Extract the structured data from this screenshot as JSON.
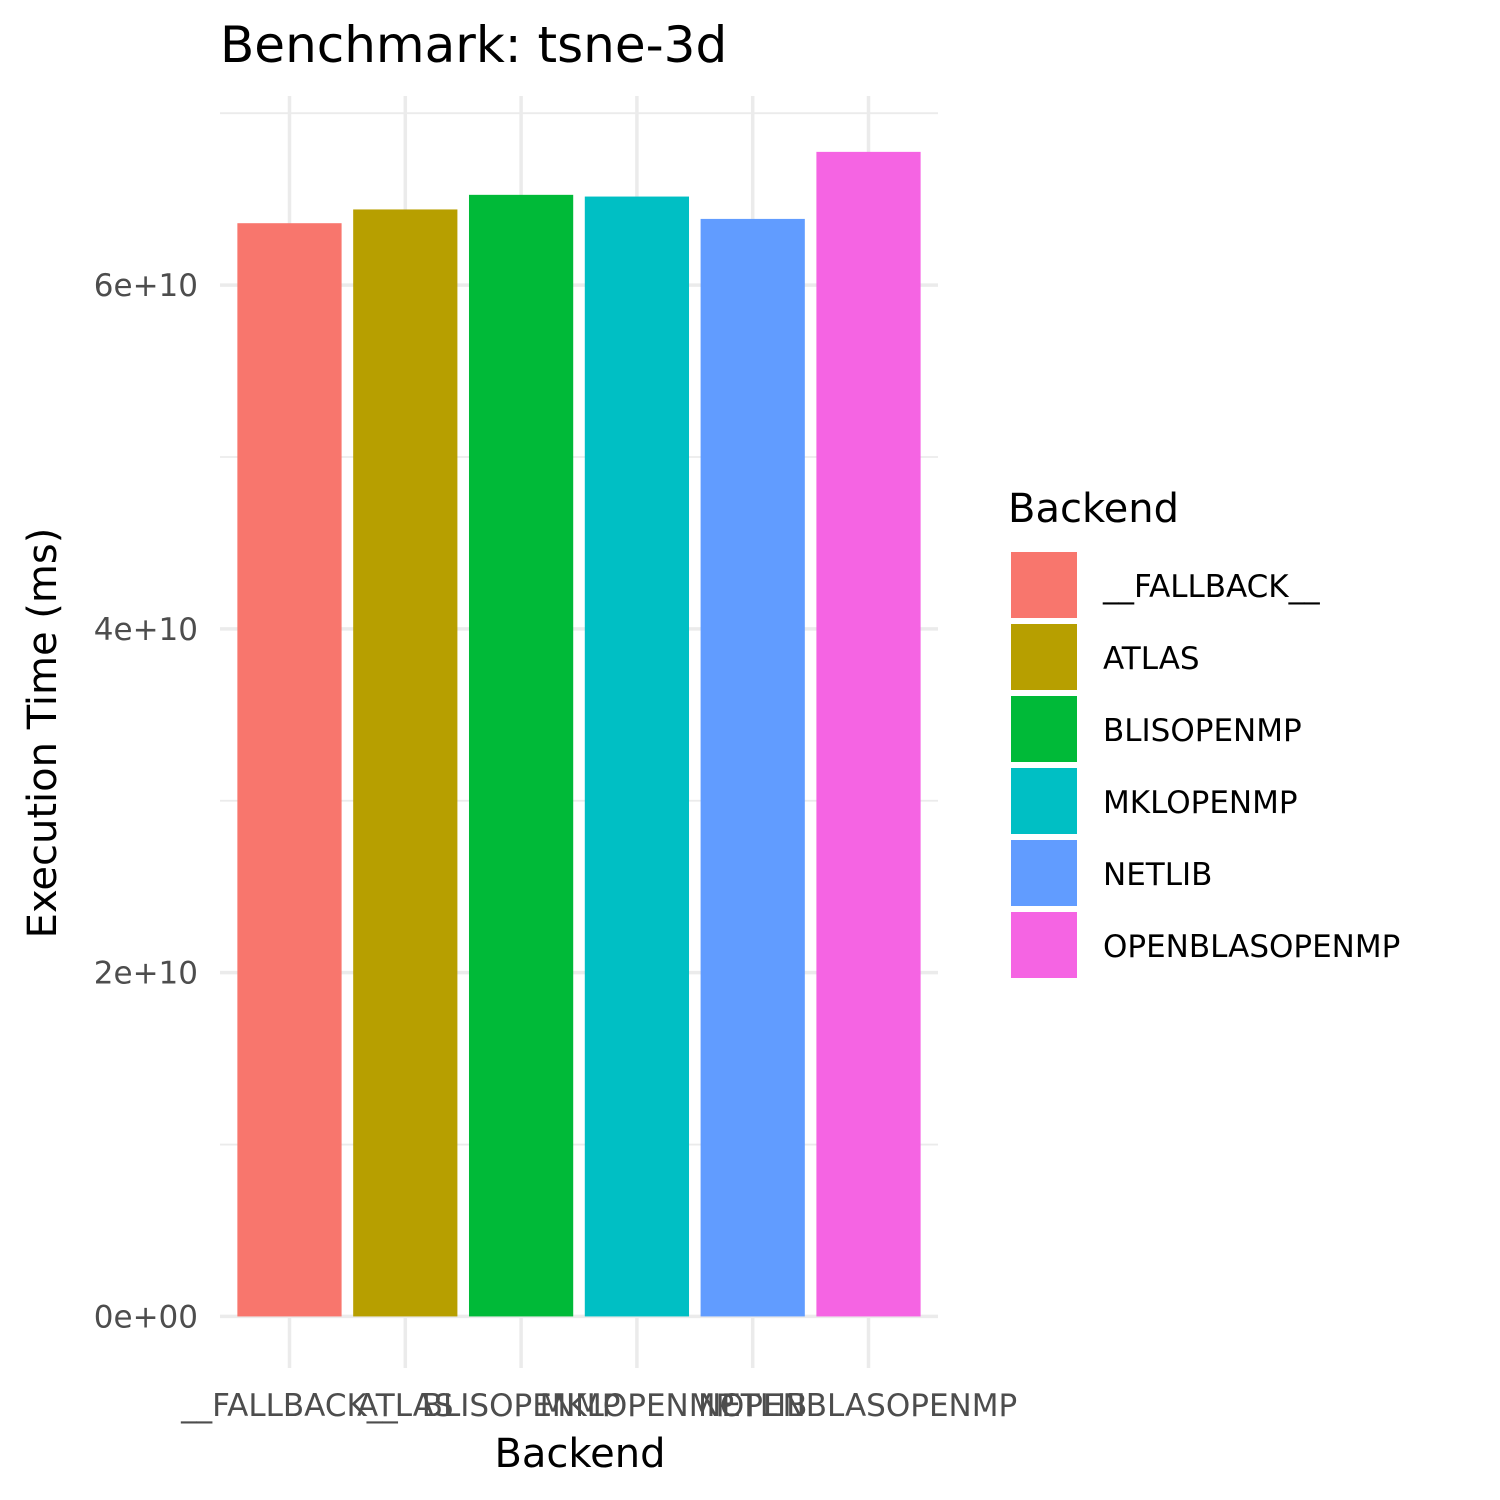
{
  "chart_data": {
    "type": "bar",
    "title": "Benchmark: tsne-3d",
    "xlabel": "Backend",
    "ylabel": "Execution Time (ms)",
    "categories": [
      "__FALLBACK__",
      "ATLAS",
      "BLISOPENMP",
      "MKLOPENMP",
      "NETLIB",
      "OPENBLASOPENMP"
    ],
    "values": [
      63600000000,
      64400000000,
      65250000000,
      65150000000,
      63850000000,
      67750000000
    ],
    "colors": [
      "#F8766D",
      "#B79F00",
      "#00BA38",
      "#00BFC4",
      "#619CFF",
      "#F564E3"
    ],
    "ylim": [
      -3000000000,
      71000000000
    ],
    "y_ticks": [
      0,
      20000000000,
      40000000000,
      60000000000
    ],
    "y_tick_labels": [
      "0e+00",
      "2e+10",
      "4e+10",
      "6e+10"
    ],
    "grid": true,
    "legend": {
      "title": "Backend",
      "position": "right",
      "items": [
        "__FALLBACK__",
        "ATLAS",
        "BLISOPENMP",
        "MKLOPENMP",
        "NETLIB",
        "OPENBLASOPENMP"
      ]
    }
  }
}
